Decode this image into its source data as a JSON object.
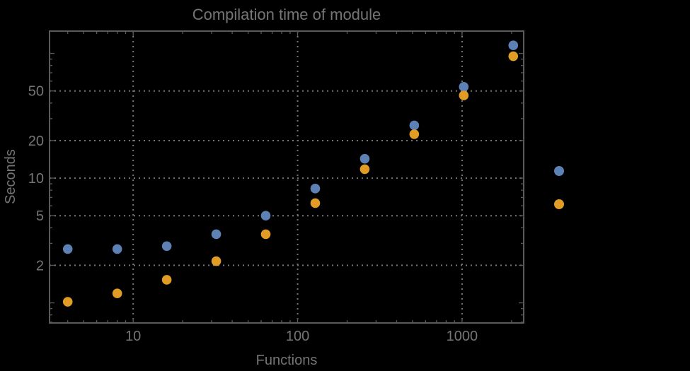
{
  "chart_data": {
    "type": "scatter",
    "title": "Compilation time of module",
    "xlabel": "Functions",
    "ylabel": "Seconds",
    "x_scale": "log",
    "y_scale": "log",
    "x": [
      4,
      8,
      16,
      32,
      64,
      128,
      256,
      512,
      1024,
      2048
    ],
    "series": [
      {
        "name": "series-1",
        "color": "#5e81b5",
        "values": [
          2.7,
          2.7,
          2.85,
          3.55,
          5.0,
          8.25,
          14.3,
          26.5,
          54,
          116
        ]
      },
      {
        "name": "series-2",
        "color": "#e09c24",
        "values": [
          1.02,
          1.19,
          1.53,
          2.16,
          3.55,
          6.3,
          11.8,
          22.5,
          46,
          95
        ]
      }
    ],
    "x_ticks": [
      10,
      100,
      1000
    ],
    "y_ticks": [
      2,
      5,
      10,
      20,
      50
    ],
    "x_range": [
      3.1,
      2370
    ],
    "y_range": [
      0.69,
      151
    ],
    "grid": "dotted",
    "legend": {
      "position": "right-outside",
      "markers": [
        {
          "name": "series-1",
          "color": "#5e81b5",
          "label": ""
        },
        {
          "name": "series-2",
          "color": "#e09c24",
          "label": ""
        }
      ]
    },
    "colors": {
      "background": "#000000",
      "frame": "#5a5a5a",
      "grid": "#757575",
      "text": "#757575"
    }
  }
}
